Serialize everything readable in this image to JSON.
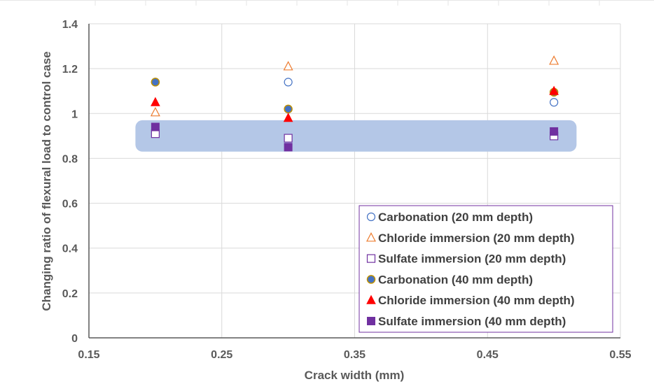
{
  "chart_data": {
    "type": "scatter",
    "xlabel": "Crack width (mm)",
    "ylabel": "Changing ratio of flexural load to control case",
    "xlim": [
      0.15,
      0.55
    ],
    "ylim": [
      0,
      1.4
    ],
    "xticks": [
      "0.15",
      "0.25",
      "0.35",
      "0.45",
      "0.55"
    ],
    "yticks": [
      "0",
      "0.2",
      "0.4",
      "0.6",
      "0.8",
      "1",
      "1.2",
      "1.4"
    ],
    "grid": true,
    "legend_position": "bottom-right",
    "highlight_band": {
      "x": [
        0.185,
        0.517
      ],
      "y": [
        0.83,
        0.97
      ],
      "color": "#b4c7e7"
    },
    "series": [
      {
        "name": "Carbonation (20 mm depth)",
        "marker": "circle-open",
        "color": "#4472c4",
        "points": [
          [
            0.2,
            1.14
          ],
          [
            0.3,
            1.14
          ],
          [
            0.5,
            1.05
          ]
        ]
      },
      {
        "name": "Chloride immersion (20 mm depth)",
        "marker": "triangle-open",
        "color": "#ed7d31",
        "points": [
          [
            0.2,
            1.005
          ],
          [
            0.3,
            1.21
          ],
          [
            0.5,
            1.235
          ]
        ]
      },
      {
        "name": "Sulfate immersion (20 mm depth)",
        "marker": "square-open",
        "color": "#7030a0",
        "points": [
          [
            0.2,
            0.91
          ],
          [
            0.3,
            0.89
          ],
          [
            0.5,
            0.9
          ]
        ]
      },
      {
        "name": "Carbonation (40 mm depth)",
        "marker": "circle-filled",
        "color": "#4472c4",
        "edge": "#bf9000",
        "points": [
          [
            0.2,
            1.14
          ],
          [
            0.3,
            1.02
          ],
          [
            0.5,
            1.095
          ]
        ]
      },
      {
        "name": "Chloride immersion (40 mm depth)",
        "marker": "triangle-filled",
        "color": "#ff0000",
        "points": [
          [
            0.2,
            1.05
          ],
          [
            0.3,
            0.98
          ],
          [
            0.5,
            1.1
          ]
        ]
      },
      {
        "name": "Sulfate immersion (40 mm depth)",
        "marker": "square-filled",
        "color": "#7030a0",
        "points": [
          [
            0.2,
            0.94
          ],
          [
            0.3,
            0.85
          ],
          [
            0.5,
            0.92
          ]
        ]
      }
    ]
  }
}
